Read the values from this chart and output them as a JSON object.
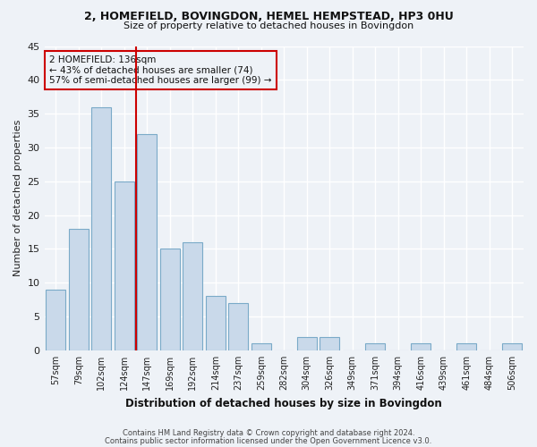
{
  "title1": "2, HOMEFIELD, BOVINGDON, HEMEL HEMPSTEAD, HP3 0HU",
  "title2": "Size of property relative to detached houses in Bovingdon",
  "xlabel": "Distribution of detached houses by size in Bovingdon",
  "ylabel": "Number of detached properties",
  "categories": [
    "57sqm",
    "79sqm",
    "102sqm",
    "124sqm",
    "147sqm",
    "169sqm",
    "192sqm",
    "214sqm",
    "237sqm",
    "259sqm",
    "282sqm",
    "304sqm",
    "326sqm",
    "349sqm",
    "371sqm",
    "394sqm",
    "416sqm",
    "439sqm",
    "461sqm",
    "484sqm",
    "506sqm"
  ],
  "values": [
    9,
    18,
    36,
    25,
    32,
    15,
    16,
    8,
    7,
    1,
    0,
    2,
    2,
    0,
    1,
    0,
    1,
    0,
    1,
    0,
    1
  ],
  "bar_color": "#c9d9ea",
  "bar_edge_color": "#7aaac8",
  "vline_color": "#cc0000",
  "vline_pos": 3.5,
  "annotation_lines": [
    "2 HOMEFIELD: 136sqm",
    "← 43% of detached houses are smaller (74)",
    "57% of semi-detached houses are larger (99) →"
  ],
  "annotation_box_color": "#cc0000",
  "ylim": [
    0,
    45
  ],
  "yticks": [
    0,
    5,
    10,
    15,
    20,
    25,
    30,
    35,
    40,
    45
  ],
  "footnote1": "Contains HM Land Registry data © Crown copyright and database right 2024.",
  "footnote2": "Contains public sector information licensed under the Open Government Licence v3.0.",
  "background_color": "#eef2f7",
  "grid_color": "#ffffff"
}
